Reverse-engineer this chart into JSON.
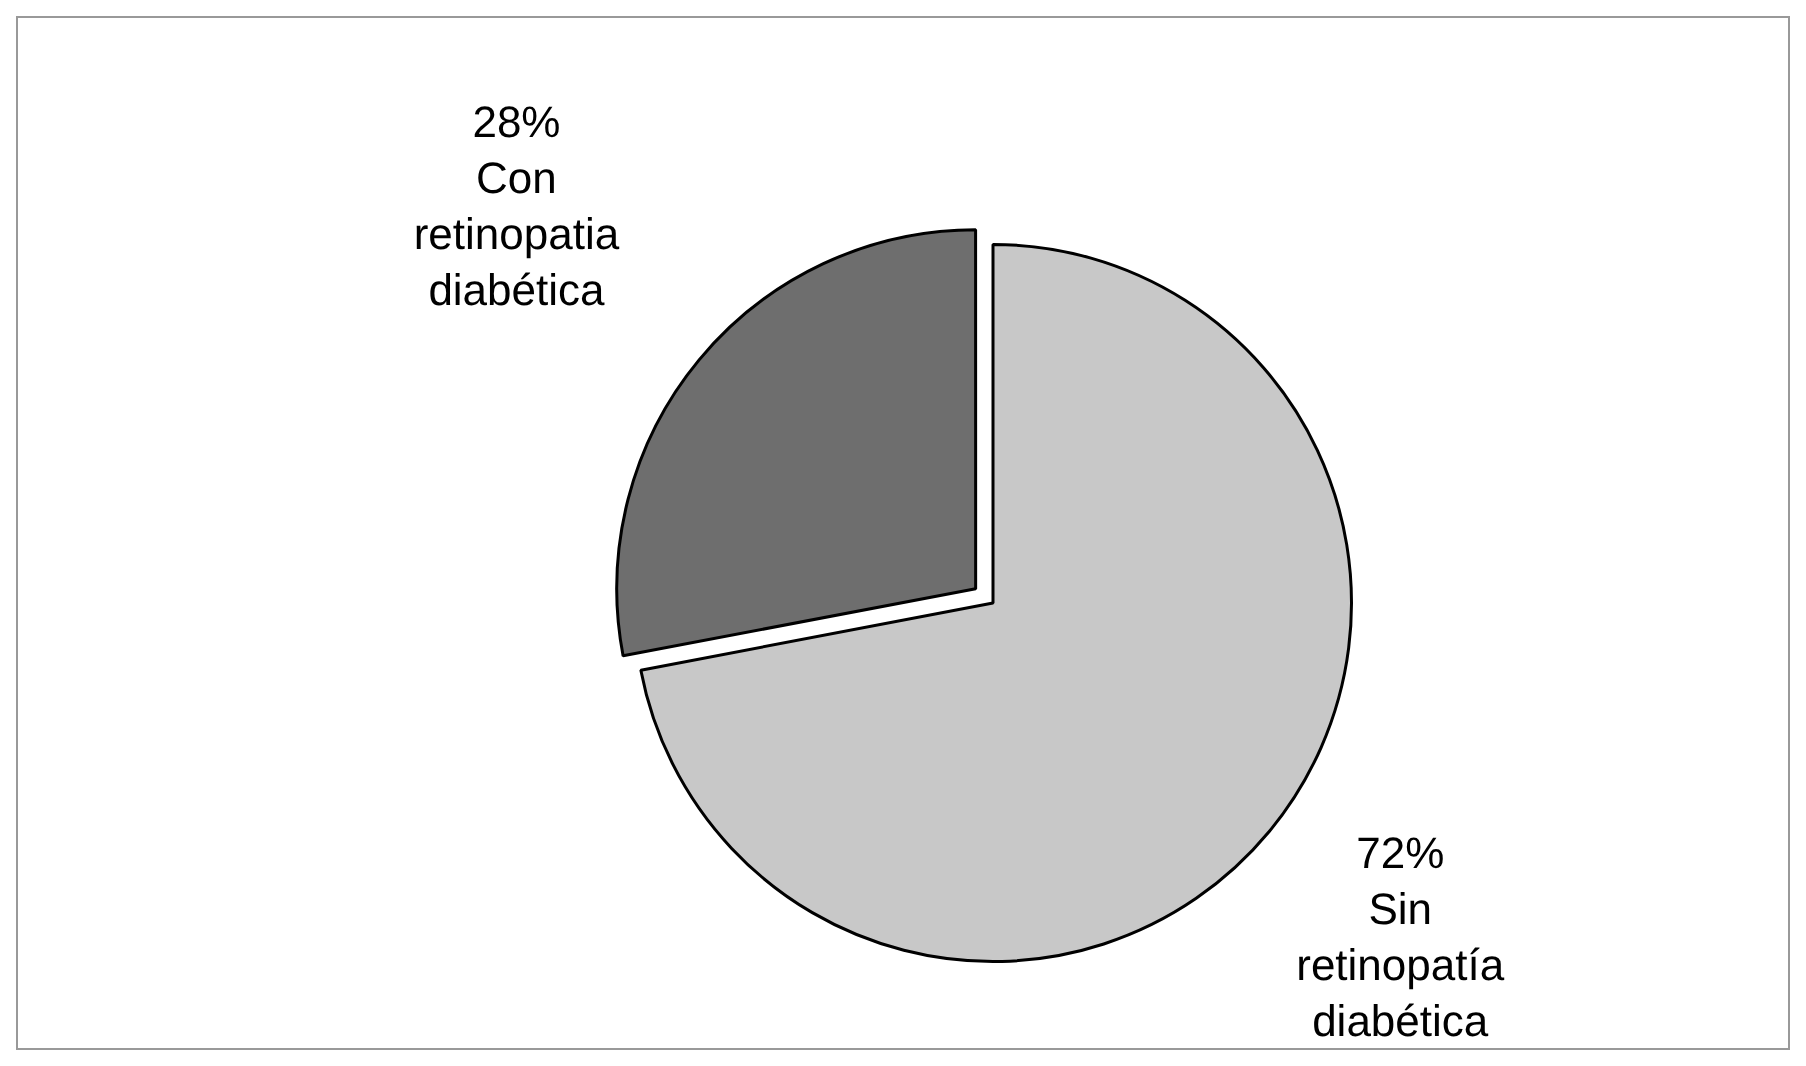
{
  "chart_data": {
    "type": "pie",
    "categories": [
      "Con retinopatia diabética",
      "Sin retinopatía diabética"
    ],
    "values": [
      28,
      72
    ],
    "value_labels": [
      "28%",
      "72%"
    ],
    "colors": [
      "#6e6e6e",
      "#c8c8c8"
    ],
    "legend": false
  }
}
